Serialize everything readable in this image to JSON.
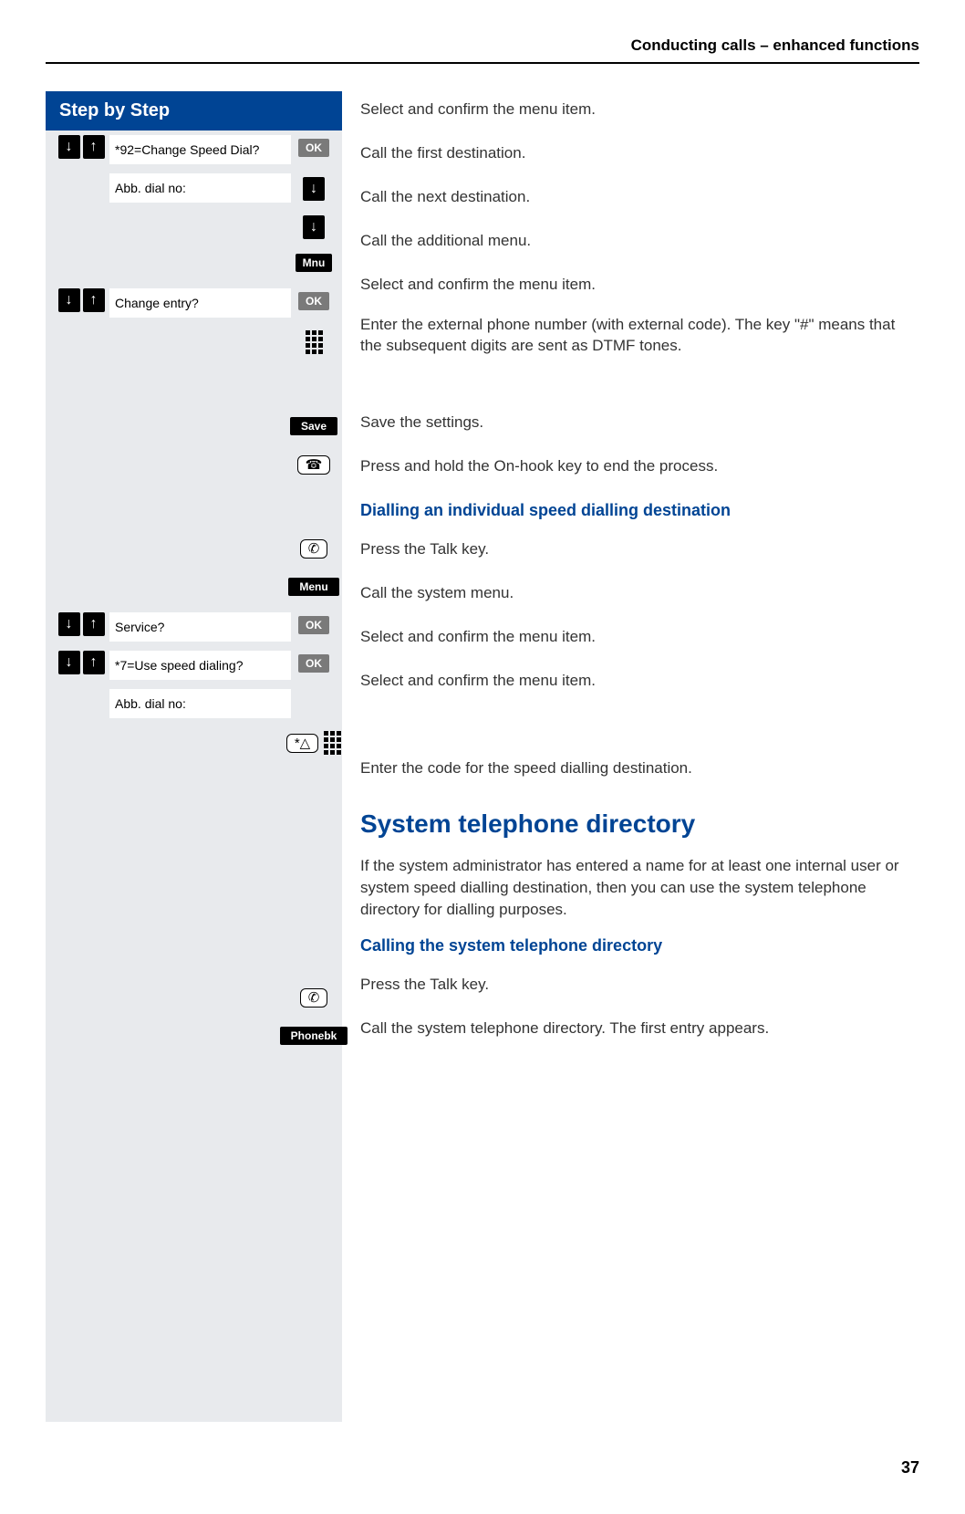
{
  "header": {
    "title": "Conducting calls – enhanced functions"
  },
  "stepHeader": "Step by Step",
  "colors": {
    "brand_blue": "#004494",
    "step_bg": "#e8eaed",
    "button_black": "#000000",
    "button_gray": "#7a7a7a"
  },
  "rows": [
    {
      "arrows": true,
      "label": "*92=Change Speed Dial?",
      "button": "OK",
      "btnStyle": "gray",
      "instruction": "Select and confirm the menu item."
    },
    {
      "arrows": false,
      "label": "Abb. dial no:",
      "button": "↓",
      "btnStyle": "arrow",
      "instruction": "Call the first destination."
    },
    {
      "arrows": false,
      "label": "",
      "button": "↓",
      "btnStyle": "arrow",
      "instruction": "Call the next destination."
    },
    {
      "arrows": false,
      "label": "",
      "button": "Mnu",
      "btnStyle": "black",
      "instruction": "Call the additional menu."
    },
    {
      "arrows": true,
      "label": "Change entry?",
      "button": "OK",
      "btnStyle": "gray",
      "instruction": "Select and confirm the menu item."
    },
    {
      "arrows": false,
      "label": "",
      "button": "keypad",
      "btnStyle": "icon",
      "instruction": "Enter the external phone number (with external code). The key \"#\" means that the subsequent digits are sent as DTMF tones.",
      "tall": true
    },
    {
      "arrows": false,
      "label": "",
      "button": "Save",
      "btnStyle": "black-wide",
      "instruction": "Save the settings."
    },
    {
      "arrows": false,
      "label": "",
      "button": "onhook",
      "btnStyle": "outline",
      "instruction": "Press and hold the On-hook key to end the process."
    }
  ],
  "subheading1": "Dialling an individual speed dialling destination",
  "rows2": [
    {
      "arrows": false,
      "label": "",
      "button": "talk",
      "btnStyle": "outline",
      "instruction": "Press the Talk key."
    },
    {
      "arrows": false,
      "label": "",
      "button": "Menu",
      "btnStyle": "black-wide",
      "instruction": "Call the system menu."
    },
    {
      "arrows": true,
      "label": "Service?",
      "button": "OK",
      "btnStyle": "gray",
      "instruction": "Select and confirm the menu item."
    },
    {
      "arrows": true,
      "label": "*7=Use speed dialing?",
      "button": "OK",
      "btnStyle": "gray",
      "instruction": "Select and confirm the menu item."
    },
    {
      "arrows": false,
      "label": "Abb. dial no:",
      "button": "",
      "btnStyle": "",
      "instruction": ""
    },
    {
      "arrows": false,
      "label": "",
      "button": "star-keypad",
      "btnStyle": "icon-group",
      "instruction": "Enter the code for the speed dialling destination."
    }
  ],
  "mainHeading": "System telephone directory",
  "bodyText": "If the system administrator has entered a name for at least one internal user or system speed dialling destination, then you can use the system telephone directory for dialling purposes.",
  "subheading2": "Calling the system telephone directory",
  "rows3": [
    {
      "arrows": false,
      "label": "",
      "button": "talk",
      "btnStyle": "outline",
      "instruction": "Press the Talk key."
    },
    {
      "arrows": false,
      "label": "",
      "button": "Phonebk",
      "btnStyle": "black-wide",
      "instruction": "Call the system telephone directory. The first entry appears."
    }
  ],
  "pageNumber": "37"
}
